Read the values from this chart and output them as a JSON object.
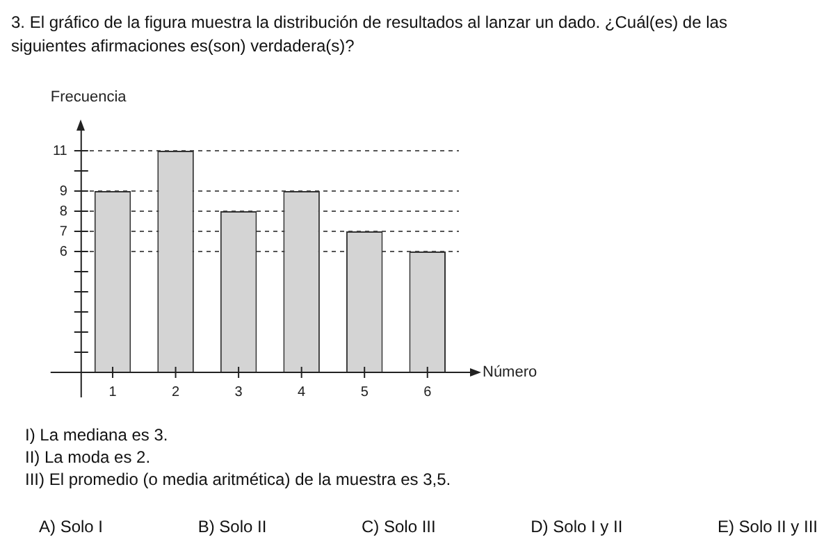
{
  "chart_data": {
    "type": "bar",
    "title": "3.  El gráfico de la figura muestra la distribución de resultados al lanzar un dado. ¿Cuál(es) de las siguientes afirmaciones es(son) verdadera(s)?",
    "xlabel": "Número",
    "ylabel": "Frecuencia",
    "categories": [
      "1",
      "2",
      "3",
      "4",
      "5",
      "6"
    ],
    "values": [
      9,
      11,
      8,
      9,
      7,
      6
    ],
    "color": "#d4d4d4",
    "ylim": [
      0,
      12
    ],
    "yticks": [
      {
        "value": 1,
        "label": null
      },
      {
        "value": 2,
        "label": null
      },
      {
        "value": 3,
        "label": null
      },
      {
        "value": 4,
        "label": null
      },
      {
        "value": 5,
        "label": null
      },
      6,
      7,
      8,
      9,
      {
        "value": 10,
        "label": null
      },
      11
    ],
    "grid": "y",
    "legend": false,
    "annotations": [
      "I) La mediana es 3.",
      "II) La moda es 2.",
      "III) El promedio (o media aritmética) de la muestra es 3,5.",
      "A) Solo I",
      "B) Solo II",
      "C) Solo III",
      "D) Solo I y II",
      "E) Solo II y III"
    ]
  }
}
